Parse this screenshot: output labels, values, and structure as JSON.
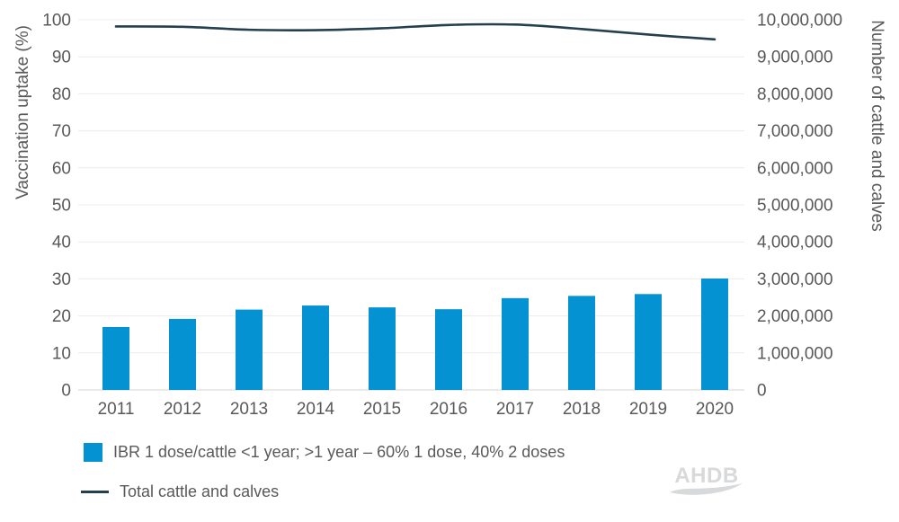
{
  "watermark": {
    "text": "AHDB"
  },
  "chart_data": {
    "type": "bar+line",
    "categories": [
      "2011",
      "2012",
      "2013",
      "2014",
      "2015",
      "2016",
      "2017",
      "2018",
      "2019",
      "2020"
    ],
    "series": [
      {
        "name": "IBR 1 dose/cattle <1 year; >1 year – 60% 1 dose, 40% 2 doses",
        "type": "bar",
        "axis": "left",
        "color": "#0492d3",
        "values": [
          17.0,
          19.2,
          21.7,
          22.8,
          22.3,
          21.8,
          24.8,
          25.4,
          25.9,
          30.1
        ]
      },
      {
        "name": "Total cattle and calves",
        "type": "line",
        "axis": "right",
        "color": "#24404f",
        "values": [
          9820000,
          9810000,
          9730000,
          9720000,
          9770000,
          9860000,
          9870000,
          9750000,
          9600000,
          9470000
        ]
      }
    ],
    "left_axis": {
      "label": "Vaccination uptake (%)",
      "min": 0,
      "max": 100,
      "step": 10,
      "ticks": [
        "100",
        "90",
        "80",
        "70",
        "60",
        "50",
        "40",
        "30",
        "20",
        "10",
        "0"
      ]
    },
    "right_axis": {
      "label": "Number of cattle and calves",
      "min": 0,
      "max": 10000000,
      "step": 1000000,
      "ticks": [
        "10,000,000",
        "9,000,000",
        "8,000,000",
        "7,000,000",
        "6,000,000",
        "5,000,000",
        "4,000,000",
        "3,000,000",
        "2,000,000",
        "1,000,000",
        "0"
      ]
    },
    "grid": "horizontal",
    "legend_position": "bottom",
    "colors": {
      "grid": "#ececec",
      "axis_line": "#d4d4d4",
      "tick_text": "#595959"
    }
  }
}
